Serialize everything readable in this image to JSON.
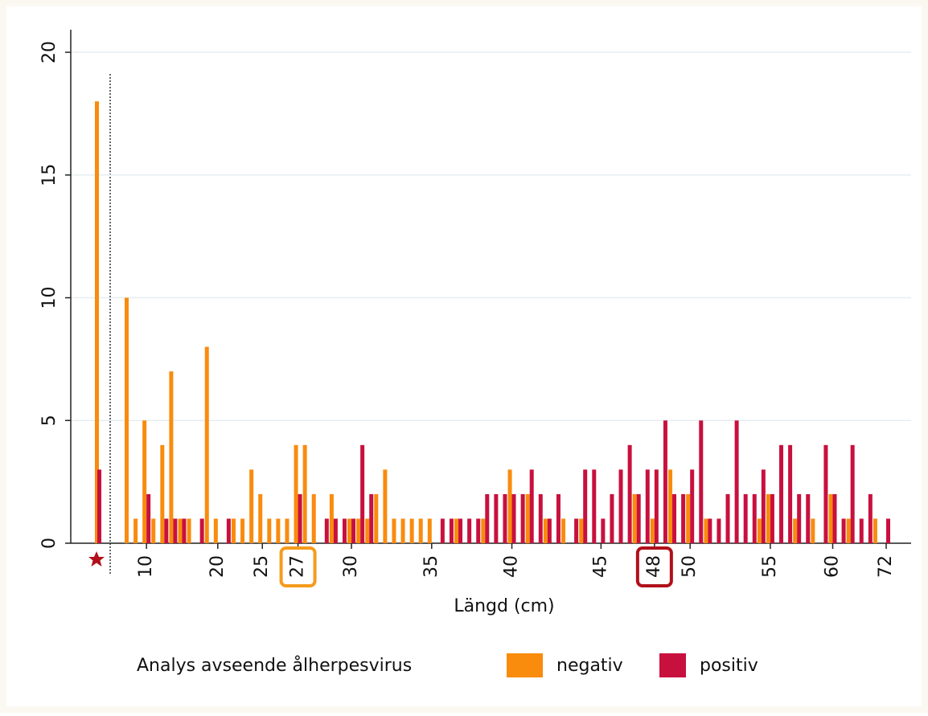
{
  "chart_data": {
    "type": "bar",
    "x_label": "Längd (cm)",
    "legend_title": "Analys avseende ålherpesvirus",
    "categories": [
      null,
      null,
      null,
      "10",
      null,
      null,
      null,
      null,
      null,
      null,
      null,
      "20",
      null,
      null,
      null,
      null,
      "25",
      null,
      null,
      null,
      "27",
      null,
      null,
      null,
      null,
      null,
      "30",
      null,
      null,
      null,
      null,
      null,
      null,
      null,
      null,
      "35",
      null,
      null,
      null,
      null,
      null,
      null,
      null,
      null,
      "40",
      null,
      null,
      null,
      null,
      null,
      null,
      null,
      null,
      null,
      "45",
      null,
      null,
      null,
      null,
      null,
      "48",
      null,
      null,
      null,
      "50",
      null,
      null,
      null,
      null,
      null,
      null,
      null,
      null,
      "55",
      null,
      null,
      null,
      null,
      null,
      null,
      "60",
      null,
      null,
      null,
      null,
      null,
      "72"
    ],
    "series": [
      {
        "name": "negativ",
        "color": "#f98b0d",
        "values": [
          18,
          10,
          1,
          5,
          1,
          4,
          7,
          1,
          1,
          0,
          8,
          1,
          0,
          1,
          1,
          3,
          2,
          1,
          1,
          1,
          4,
          4,
          2,
          0,
          2,
          0,
          1,
          1,
          1,
          2,
          3,
          1,
          1,
          1,
          1,
          1,
          0,
          0,
          1,
          0,
          0,
          1,
          0,
          0,
          3,
          0,
          2,
          0,
          1,
          0,
          1,
          0,
          1,
          0,
          0,
          0,
          0,
          0,
          2,
          0,
          1,
          0,
          3,
          0,
          2,
          0,
          1,
          0,
          0,
          0,
          0,
          0,
          1,
          2,
          0,
          0,
          1,
          0,
          1,
          0,
          2,
          0,
          1,
          0,
          0,
          1,
          0
        ]
      },
      {
        "name": "positiv",
        "color": "#c8103e",
        "values": [
          3,
          0,
          0,
          2,
          0,
          1,
          1,
          1,
          0,
          1,
          0,
          0,
          1,
          0,
          0,
          0,
          0,
          0,
          0,
          0,
          2,
          0,
          0,
          1,
          1,
          1,
          1,
          4,
          2,
          0,
          0,
          0,
          0,
          0,
          0,
          0,
          1,
          1,
          1,
          1,
          1,
          2,
          2,
          2,
          2,
          2,
          3,
          2,
          1,
          2,
          0,
          1,
          3,
          3,
          1,
          2,
          3,
          4,
          2,
          3,
          3,
          5,
          2,
          2,
          3,
          5,
          1,
          1,
          2,
          5,
          2,
          2,
          3,
          2,
          4,
          4,
          2,
          2,
          0,
          4,
          2,
          1,
          4,
          1,
          2,
          0,
          1
        ]
      }
    ],
    "ylim": [
      0,
      21
    ],
    "yticks": [
      0,
      5,
      10,
      15,
      20
    ],
    "grid": true
  }
}
